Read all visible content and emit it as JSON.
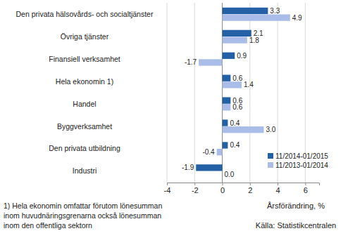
{
  "chart_data": {
    "type": "bar",
    "orientation": "horizontal",
    "categories": [
      "Den privata hälsovårds- och socialtjänster",
      "Övriga tjänster",
      "Finansiell verksamhet",
      "Hela ekonomin 1)",
      "Handel",
      "Byggverksamhet",
      "Den privata utbildning",
      "Industri"
    ],
    "series": [
      {
        "name": "11/2014-01/2015",
        "color": "#2360a5",
        "values": [
          3.3,
          2.1,
          0.9,
          0.6,
          0.6,
          0.4,
          0.4,
          -1.9
        ],
        "value_labels": [
          "3.3",
          "2.1",
          "0.9",
          "0.6",
          "0.6",
          "0.4",
          "0.4",
          "-1.9"
        ]
      },
      {
        "name": "11/2013-01/2014",
        "color": "#a9bde8",
        "values": [
          4.9,
          1.8,
          -1.7,
          1.4,
          0.6,
          3.0,
          -0.4,
          0.0
        ],
        "value_labels": [
          "4.9",
          "1.8",
          "-1.7",
          "1.4",
          "0.6",
          "3.0",
          "-0.4",
          "0.0"
        ]
      }
    ],
    "xlim": [
      -4,
      7
    ],
    "xticks": [
      -4,
      -2,
      0,
      2,
      4,
      6
    ],
    "x_label": "Årsförändring, %",
    "footnote": [
      "1) Hela ekonomin omfattar förutom lönesumman",
      "inom huvudnäringsgrenarna också lönesumman",
      "inom den offentliga sektorn"
    ],
    "source": "Källa: Statistikcentralen",
    "grid": true,
    "data_labels": true,
    "legend": "lower right"
  }
}
